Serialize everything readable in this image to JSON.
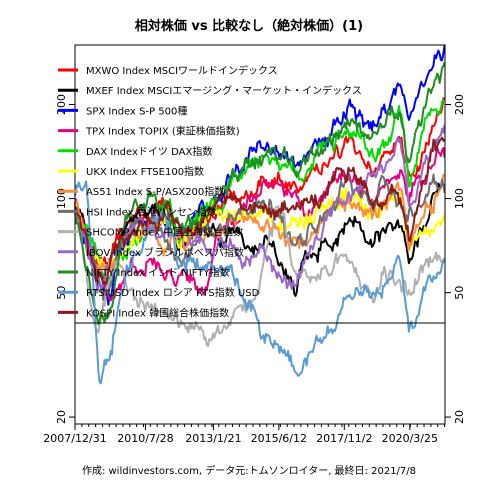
{
  "chart_data": {
    "type": "line",
    "title": "相対株価 vs 比較なし（絶対株価）(1)",
    "footer": "作成: wildinvestors.com, データ元:トムソンロイター, 最終日: 2021/7/8",
    "xlabel": "",
    "ylabel": "",
    "y_scale": "log",
    "ylim": [
      19,
      310
    ],
    "y_ticks": [
      20,
      50,
      100,
      200
    ],
    "x_tick_labels": [
      "2007/12/31",
      "2010/7/28",
      "2013/1/21",
      "2015/6/12",
      "2017/11/2",
      "2020/3/25"
    ],
    "x_range": [
      "2007-12-31",
      "2021-07-08"
    ],
    "reference_line": 40,
    "legend_position": "top-left",
    "grid": false,
    "series": [
      {
        "name": "MXWO Index MSCIワールドインデックス",
        "color": "#ff0000",
        "points": [
          [
            2007.9,
            100
          ],
          [
            2008.8,
            60
          ],
          [
            2009.2,
            58
          ],
          [
            2009.8,
            80
          ],
          [
            2011.3,
            97
          ],
          [
            2011.8,
            75
          ],
          [
            2013.0,
            92
          ],
          [
            2014.5,
            115
          ],
          [
            2015.5,
            122
          ],
          [
            2016.1,
            107
          ],
          [
            2018.0,
            145
          ],
          [
            2018.95,
            120
          ],
          [
            2019.9,
            150
          ],
          [
            2020.2,
            112
          ],
          [
            2020.8,
            160
          ],
          [
            2021.5,
            208
          ]
        ]
      },
      {
        "name": "MXEF Index MSCIエマージング・マーケット・インデックス",
        "color": "#000000",
        "points": [
          [
            2007.9,
            100
          ],
          [
            2008.3,
            90
          ],
          [
            2008.8,
            52
          ],
          [
            2009.2,
            50
          ],
          [
            2009.8,
            85
          ],
          [
            2010.9,
            95
          ],
          [
            2011.8,
            70
          ],
          [
            2013.0,
            80
          ],
          [
            2013.5,
            72
          ],
          [
            2015.0,
            78
          ],
          [
            2016.0,
            55
          ],
          [
            2018.0,
            88
          ],
          [
            2018.9,
            72
          ],
          [
            2019.9,
            80
          ],
          [
            2020.2,
            60
          ],
          [
            2021.1,
            102
          ],
          [
            2021.5,
            98
          ]
        ]
      },
      {
        "name": "SPX Index S-P 500種",
        "color": "#0000ff",
        "points": [
          [
            2007.9,
            100
          ],
          [
            2008.8,
            62
          ],
          [
            2009.2,
            48
          ],
          [
            2009.8,
            75
          ],
          [
            2011.3,
            93
          ],
          [
            2011.8,
            80
          ],
          [
            2013.0,
            98
          ],
          [
            2014.5,
            135
          ],
          [
            2015.5,
            142
          ],
          [
            2016.1,
            125
          ],
          [
            2018.0,
            190
          ],
          [
            2018.95,
            165
          ],
          [
            2019.9,
            220
          ],
          [
            2020.2,
            160
          ],
          [
            2020.8,
            240
          ],
          [
            2021.5,
            295
          ]
        ]
      },
      {
        "name": "TPX Index TOPIX (東証株価指数)",
        "color": "#e6007e",
        "points": [
          [
            2007.9,
            100
          ],
          [
            2008.8,
            60
          ],
          [
            2009.2,
            50
          ],
          [
            2010.0,
            65
          ],
          [
            2011.3,
            62
          ],
          [
            2012.8,
            55
          ],
          [
            2013.4,
            83
          ],
          [
            2015.5,
            112
          ],
          [
            2016.3,
            88
          ],
          [
            2018.0,
            125
          ],
          [
            2018.95,
            100
          ],
          [
            2019.9,
            118
          ],
          [
            2020.2,
            95
          ],
          [
            2021.2,
            142
          ],
          [
            2021.5,
            140
          ]
        ]
      },
      {
        "name": "DAX Indexドイツ DAX指数",
        "color": "#00dd00",
        "points": [
          [
            2007.9,
            100
          ],
          [
            2008.8,
            62
          ],
          [
            2009.2,
            55
          ],
          [
            2010.0,
            75
          ],
          [
            2011.5,
            95
          ],
          [
            2011.8,
            72
          ],
          [
            2013.0,
            95
          ],
          [
            2015.3,
            148
          ],
          [
            2016.1,
            117
          ],
          [
            2018.0,
            170
          ],
          [
            2018.95,
            138
          ],
          [
            2019.9,
            175
          ],
          [
            2020.2,
            115
          ],
          [
            2020.8,
            180
          ],
          [
            2021.5,
            200
          ]
        ]
      },
      {
        "name": "UKX Index FTSE100指数",
        "color": "#ffff00",
        "points": [
          [
            2007.9,
            100
          ],
          [
            2008.8,
            65
          ],
          [
            2009.2,
            58
          ],
          [
            2010.0,
            80
          ],
          [
            2011.5,
            85
          ],
          [
            2011.8,
            75
          ],
          [
            2013.0,
            88
          ],
          [
            2014.5,
            92
          ],
          [
            2016.1,
            82
          ],
          [
            2018.0,
            102
          ],
          [
            2018.95,
            90
          ],
          [
            2019.9,
            100
          ],
          [
            2020.2,
            68
          ],
          [
            2020.8,
            80
          ],
          [
            2021.5,
            92
          ]
        ]
      },
      {
        "name": "AS51 Index S-P/ASX200指数",
        "color": "#ff8c3a",
        "points": [
          [
            2007.9,
            100
          ],
          [
            2008.8,
            62
          ],
          [
            2009.2,
            58
          ],
          [
            2010.0,
            80
          ],
          [
            2011.5,
            75
          ],
          [
            2012.5,
            70
          ],
          [
            2013.5,
            82
          ],
          [
            2015.3,
            90
          ],
          [
            2016.1,
            78
          ],
          [
            2018.0,
            95
          ],
          [
            2018.95,
            88
          ],
          [
            2019.9,
            108
          ],
          [
            2020.2,
            72
          ],
          [
            2021.5,
            118
          ]
        ]
      },
      {
        "name": "HSI Index 香港ハンセン指数",
        "color": "#6e6e6e",
        "points": [
          [
            2007.9,
            100
          ],
          [
            2008.8,
            55
          ],
          [
            2009.2,
            48
          ],
          [
            2009.8,
            80
          ],
          [
            2010.9,
            85
          ],
          [
            2011.8,
            65
          ],
          [
            2013.0,
            82
          ],
          [
            2015.3,
            100
          ],
          [
            2016.1,
            70
          ],
          [
            2018.0,
            120
          ],
          [
            2018.9,
            92
          ],
          [
            2019.3,
            108
          ],
          [
            2020.2,
            87
          ],
          [
            2021.1,
            112
          ],
          [
            2021.5,
            102
          ]
        ]
      },
      {
        "name": "SHCOMP Index 中国上海総合指数",
        "color": "#b0b0b0",
        "points": [
          [
            2007.9,
            100
          ],
          [
            2008.8,
            38
          ],
          [
            2009.5,
            62
          ],
          [
            2010.5,
            47
          ],
          [
            2012.0,
            40
          ],
          [
            2013.5,
            38
          ],
          [
            2014.5,
            45
          ],
          [
            2015.4,
            95
          ],
          [
            2016.1,
            55
          ],
          [
            2018.0,
            62
          ],
          [
            2018.95,
            46
          ],
          [
            2019.3,
            58
          ],
          [
            2020.2,
            52
          ],
          [
            2020.6,
            62
          ],
          [
            2021.5,
            65
          ]
        ]
      },
      {
        "name": "IBOV Index ブラジルボベスパ指数",
        "color": "#9966cc",
        "points": [
          [
            2007.9,
            100
          ],
          [
            2008.8,
            55
          ],
          [
            2009.2,
            60
          ],
          [
            2010.0,
            90
          ],
          [
            2011.5,
            75
          ],
          [
            2013.5,
            70
          ],
          [
            2015.0,
            65
          ],
          [
            2016.1,
            55
          ],
          [
            2017.5,
            92
          ],
          [
            2018.0,
            100
          ],
          [
            2019.0,
            120
          ],
          [
            2019.9,
            160
          ],
          [
            2020.2,
            100
          ],
          [
            2021.5,
            160
          ]
        ]
      },
      {
        "name": "NIFTY Index インド NIFTY指数",
        "color": "#228b22",
        "points": [
          [
            2007.9,
            100
          ],
          [
            2008.8,
            45
          ],
          [
            2009.2,
            42
          ],
          [
            2009.8,
            85
          ],
          [
            2010.9,
            105
          ],
          [
            2011.8,
            80
          ],
          [
            2013.0,
            95
          ],
          [
            2014.5,
            125
          ],
          [
            2015.2,
            142
          ],
          [
            2016.1,
            115
          ],
          [
            2018.0,
            175
          ],
          [
            2018.95,
            170
          ],
          [
            2019.9,
            190
          ],
          [
            2020.2,
            125
          ],
          [
            2020.8,
            190
          ],
          [
            2021.5,
            255
          ]
        ]
      },
      {
        "name": "RTSIUSD Index ロシア RTS指数 USD",
        "color": "#5b9bd5",
        "points": [
          [
            2007.9,
            100
          ],
          [
            2008.4,
            110
          ],
          [
            2008.9,
            24
          ],
          [
            2009.2,
            30
          ],
          [
            2009.8,
            60
          ],
          [
            2011.3,
            95
          ],
          [
            2011.8,
            60
          ],
          [
            2013.0,
            65
          ],
          [
            2014.0,
            55
          ],
          [
            2014.95,
            34
          ],
          [
            2016.1,
            28
          ],
          [
            2018.0,
            50
          ],
          [
            2018.9,
            45
          ],
          [
            2019.9,
            65
          ],
          [
            2020.2,
            35
          ],
          [
            2021.5,
            70
          ]
        ]
      },
      {
        "name": "KOSPI Index 韓国総合株価指数",
        "color": "#8b1a1a",
        "points": [
          [
            2007.9,
            100
          ],
          [
            2008.8,
            55
          ],
          [
            2009.2,
            60
          ],
          [
            2010.0,
            80
          ],
          [
            2011.3,
            95
          ],
          [
            2011.8,
            80
          ],
          [
            2013.0,
            92
          ],
          [
            2015.0,
            95
          ],
          [
            2016.1,
            90
          ],
          [
            2018.0,
            125
          ],
          [
            2018.95,
            102
          ],
          [
            2019.9,
            100
          ],
          [
            2020.2,
            75
          ],
          [
            2021.1,
            160
          ],
          [
            2021.5,
            155
          ]
        ]
      }
    ]
  }
}
